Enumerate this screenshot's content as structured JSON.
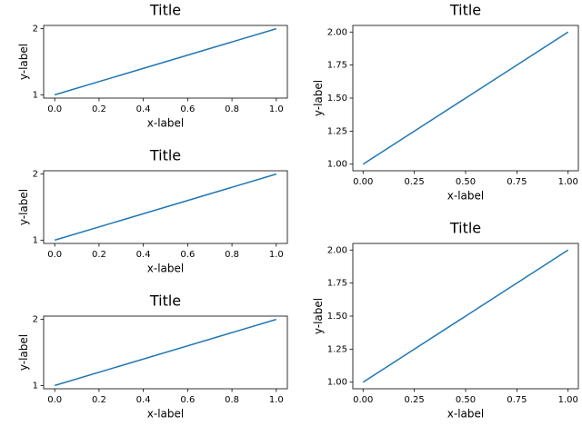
{
  "chart_data": [
    {
      "type": "line",
      "title": "Title",
      "xlabel": "x-label",
      "ylabel": "y-label",
      "x": [
        0,
        1
      ],
      "values": [
        1,
        2
      ],
      "color": "#1f77b4",
      "xlim": [
        -0.05,
        1.05
      ],
      "ylim": [
        0.95,
        2.05
      ],
      "xticks": [
        {
          "value": 0,
          "label": "0.0"
        },
        0.2,
        0.4,
        0.6,
        0.8,
        {
          "value": 1,
          "label": "1.0"
        }
      ],
      "yticks": [
        1,
        2
      ]
    },
    {
      "type": "line",
      "title": "Title",
      "xlabel": "x-label",
      "ylabel": "y-label",
      "x": [
        0,
        1
      ],
      "values": [
        1,
        2
      ],
      "color": "#1f77b4",
      "xlim": [
        -0.05,
        1.05
      ],
      "ylim": [
        0.95,
        2.05
      ],
      "xticks": [
        {
          "value": 0,
          "label": "0.00"
        },
        {
          "value": 0.25,
          "label": "0.25"
        },
        {
          "value": 0.5,
          "label": "0.50"
        },
        {
          "value": 0.75,
          "label": "0.75"
        },
        {
          "value": 1,
          "label": "1.00"
        }
      ],
      "yticks": [
        {
          "value": 1,
          "label": "1.00"
        },
        {
          "value": 1.25,
          "label": "1.25"
        },
        {
          "value": 1.5,
          "label": "1.50"
        },
        {
          "value": 1.75,
          "label": "1.75"
        },
        {
          "value": 2,
          "label": "2.00"
        }
      ]
    },
    {
      "type": "line",
      "title": "Title",
      "xlabel": "x-label",
      "ylabel": "y-label",
      "x": [
        0,
        1
      ],
      "values": [
        1,
        2
      ],
      "color": "#1f77b4",
      "xlim": [
        -0.05,
        1.05
      ],
      "ylim": [
        0.95,
        2.05
      ],
      "xticks": [
        {
          "value": 0,
          "label": "0.0"
        },
        0.2,
        0.4,
        0.6,
        0.8,
        {
          "value": 1,
          "label": "1.0"
        }
      ],
      "yticks": [
        1,
        2
      ]
    },
    {
      "type": "line",
      "title": "Title",
      "xlabel": "x-label",
      "ylabel": "y-label",
      "x": [
        0,
        1
      ],
      "values": [
        1,
        2
      ],
      "color": "#1f77b4",
      "xlim": [
        -0.05,
        1.05
      ],
      "ylim": [
        0.95,
        2.05
      ],
      "xticks": [
        {
          "value": 0,
          "label": "0.00"
        },
        {
          "value": 0.25,
          "label": "0.25"
        },
        {
          "value": 0.5,
          "label": "0.50"
        },
        {
          "value": 0.75,
          "label": "0.75"
        },
        {
          "value": 1,
          "label": "1.00"
        }
      ],
      "yticks": [
        {
          "value": 1,
          "label": "1.00"
        },
        {
          "value": 1.25,
          "label": "1.25"
        },
        {
          "value": 1.5,
          "label": "1.50"
        },
        {
          "value": 1.75,
          "label": "1.75"
        },
        {
          "value": 2,
          "label": "2.00"
        }
      ]
    },
    {
      "type": "line",
      "title": "Title",
      "xlabel": "x-label",
      "ylabel": "y-label",
      "x": [
        0,
        1
      ],
      "values": [
        1,
        2
      ],
      "color": "#1f77b4",
      "xlim": [
        -0.05,
        1.05
      ],
      "ylim": [
        0.95,
        2.05
      ],
      "xticks": [
        {
          "value": 0,
          "label": "0.0"
        },
        0.2,
        0.4,
        0.6,
        0.8,
        {
          "value": 1,
          "label": "1.0"
        }
      ],
      "yticks": [
        1,
        2
      ]
    }
  ]
}
